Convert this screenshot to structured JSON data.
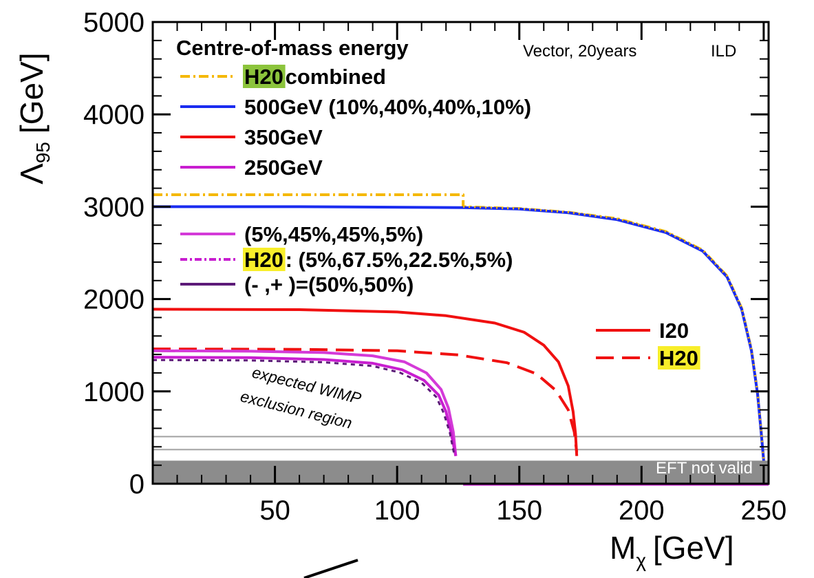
{
  "chart_data": {
    "type": "line",
    "xlabel": "M",
    "xlabel_sub": "χ",
    "xlabel_unit": "[GeV]",
    "ylabel": "Λ",
    "ylabel_sub": "95",
    "ylabel_unit": "[GeV]",
    "xlim": [
      0,
      252
    ],
    "ylim": [
      0,
      5000
    ],
    "x_ticks": [
      50,
      100,
      150,
      200,
      250
    ],
    "y_ticks": [
      0,
      1000,
      2000,
      3000,
      4000,
      5000
    ],
    "grid": false,
    "legend_title": "Centre-of-mass energy",
    "corner_label_1": "Vector, 20years",
    "corner_label_2": "ILD",
    "legend": [
      {
        "id": "h20c",
        "highlight": "H20",
        "text": " combined",
        "color": "#f5b800",
        "dash": "14,5,3,5"
      },
      {
        "id": "e500",
        "highlight": "",
        "text": "500GeV (10%,40%,40%,10%)",
        "color": "#1a2cf0",
        "dash": ""
      },
      {
        "id": "e350",
        "highlight": "",
        "text": "350GeV",
        "color": "#f01010",
        "dash": ""
      },
      {
        "id": "e250",
        "highlight": "",
        "text": "250GeV",
        "color": "#c81ed0",
        "dash": ""
      },
      {
        "id": "p1",
        "highlight": "",
        "text": "(5%,45%,45%,5%)",
        "color": "#d43ad8",
        "dash": ""
      },
      {
        "id": "p2",
        "highlight": "H20",
        "text": ": (5%,67.5%,22.5%,5%)",
        "color": "#c81ed0",
        "dash": "10,4,3,4"
      },
      {
        "id": "p3",
        "highlight": "",
        "text": "(- ,+ )=(50%,50%)",
        "color": "#5c1a78",
        "dash": ""
      }
    ],
    "legend2": [
      {
        "id": "i20",
        "highlight": "",
        "text": "I20",
        "color": "#f01010",
        "dash": ""
      },
      {
        "id": "h20",
        "highlight": "H20",
        "text": "",
        "color": "#f01010",
        "dash": "26,12"
      }
    ],
    "highlight_colors": {
      "combined": "#8cc43c",
      "yellow": "#f8ee2a"
    },
    "annotations": {
      "region_line1": "expected WIMP",
      "region_line2": "exclusion region",
      "eft_label": "EFT not valid"
    },
    "bands": {
      "eft_band": [
        0,
        250
      ],
      "hlines": [
        370,
        510
      ],
      "band_color": "#8c8c8c",
      "hline_color": "#a0a0a0"
    },
    "series": [
      {
        "id": "h20c",
        "color": "#f5b800",
        "dash": "14,5,3,5",
        "width": 4,
        "points": [
          [
            0,
            3130
          ],
          [
            127,
            3130
          ],
          [
            127,
            3000
          ],
          [
            150,
            2980
          ],
          [
            170,
            2940
          ],
          [
            190,
            2870
          ],
          [
            210,
            2730
          ],
          [
            225,
            2530
          ],
          [
            235,
            2250
          ],
          [
            241,
            1900
          ],
          [
            245,
            1450
          ],
          [
            247.5,
            980
          ],
          [
            249,
            560
          ],
          [
            250,
            250
          ]
        ]
      },
      {
        "id": "e500",
        "color": "#1a2cf0",
        "dash": "",
        "width": 4,
        "points": [
          [
            0,
            3000
          ],
          [
            60,
            3000
          ],
          [
            127,
            2990
          ],
          [
            150,
            2975
          ],
          [
            170,
            2935
          ],
          [
            190,
            2860
          ],
          [
            210,
            2720
          ],
          [
            225,
            2520
          ],
          [
            235,
            2240
          ],
          [
            241,
            1890
          ],
          [
            245,
            1440
          ],
          [
            247.5,
            970
          ],
          [
            249,
            550
          ],
          [
            250,
            250
          ]
        ]
      },
      {
        "id": "e500dots",
        "color": "#f5b800",
        "dash": "2,6",
        "width": 3,
        "points": [
          [
            127,
            3000
          ],
          [
            150,
            2980
          ],
          [
            170,
            2940
          ],
          [
            190,
            2870
          ],
          [
            210,
            2730
          ],
          [
            225,
            2530
          ],
          [
            235,
            2250
          ],
          [
            241,
            1900
          ],
          [
            245,
            1450
          ],
          [
            247.5,
            980
          ],
          [
            249,
            560
          ],
          [
            250,
            250
          ]
        ]
      },
      {
        "id": "e350",
        "color": "#f01010",
        "dash": "",
        "width": 4,
        "points": [
          [
            0,
            1890
          ],
          [
            60,
            1885
          ],
          [
            100,
            1860
          ],
          [
            120,
            1820
          ],
          [
            140,
            1740
          ],
          [
            152,
            1640
          ],
          [
            160,
            1500
          ],
          [
            166,
            1320
          ],
          [
            170,
            1060
          ],
          [
            172,
            780
          ],
          [
            173,
            540
          ],
          [
            173.5,
            300
          ]
        ]
      },
      {
        "id": "h20_350",
        "color": "#f01010",
        "dash": "26,12",
        "width": 4,
        "points": [
          [
            0,
            1460
          ],
          [
            60,
            1455
          ],
          [
            100,
            1440
          ],
          [
            125,
            1395
          ],
          [
            145,
            1310
          ],
          [
            157,
            1190
          ],
          [
            165,
            1010
          ],
          [
            170,
            800
          ],
          [
            172.5,
            560
          ],
          [
            173.5,
            340
          ]
        ]
      },
      {
        "id": "e250_upper",
        "color": "#d43ad8",
        "dash": "",
        "width": 4,
        "points": [
          [
            0,
            1440
          ],
          [
            40,
            1435
          ],
          [
            70,
            1420
          ],
          [
            90,
            1385
          ],
          [
            103,
            1320
          ],
          [
            112,
            1200
          ],
          [
            118,
            1020
          ],
          [
            121,
            820
          ],
          [
            123,
            560
          ],
          [
            124,
            300
          ]
        ]
      },
      {
        "id": "e250_lower",
        "color": "#c81ed0",
        "dash": "",
        "width": 4,
        "points": [
          [
            0,
            1370
          ],
          [
            40,
            1365
          ],
          [
            70,
            1345
          ],
          [
            90,
            1305
          ],
          [
            102,
            1235
          ],
          [
            111,
            1120
          ],
          [
            117,
            960
          ],
          [
            120,
            780
          ],
          [
            122,
            560
          ],
          [
            124,
            300
          ]
        ]
      },
      {
        "id": "p3_dark",
        "color": "#5c1a78",
        "dash": "6,6",
        "width": 3,
        "points": [
          [
            0,
            1340
          ],
          [
            40,
            1335
          ],
          [
            70,
            1315
          ],
          [
            90,
            1275
          ],
          [
            101,
            1205
          ],
          [
            110,
            1095
          ],
          [
            116,
            940
          ],
          [
            119,
            770
          ],
          [
            121.5,
            560
          ],
          [
            123.5,
            300
          ]
        ]
      },
      {
        "id": "baseline",
        "color": "#c81ed0",
        "dash": "",
        "width": 3,
        "points": [
          [
            127,
            -10
          ],
          [
            252,
            -10
          ]
        ]
      }
    ]
  }
}
